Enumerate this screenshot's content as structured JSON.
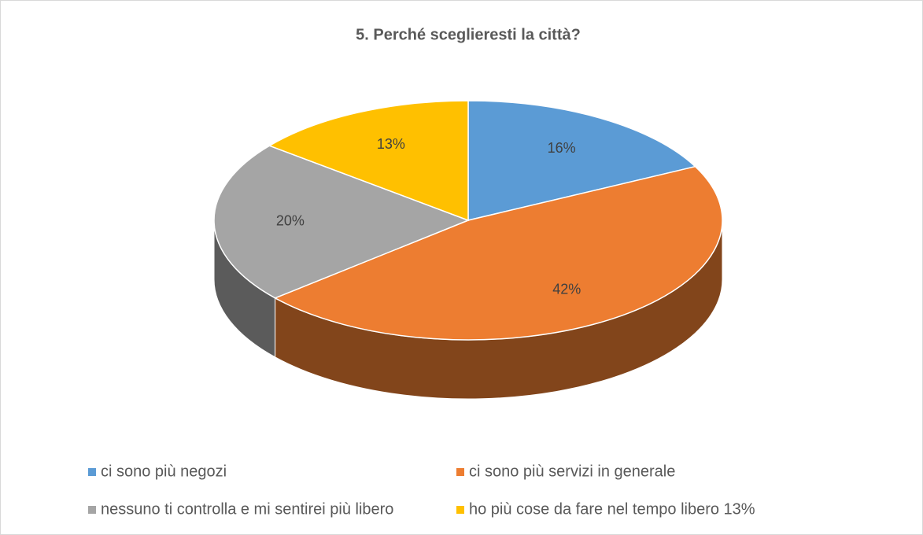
{
  "chart_data": {
    "type": "pie3d",
    "title": "5. Perché sceglieresti la città?",
    "categories": [
      "ci sono più negozi",
      "ci sono più servizi in generale",
      "nessuno ti controlla e mi sentirei più libero",
      "ho più cose da fare nel tempo libero 13%"
    ],
    "values": [
      16,
      42,
      20,
      13
    ],
    "value_labels": [
      "16%",
      "42%",
      "20%",
      "13%"
    ],
    "colors": [
      "#5b9bd5",
      "#ed7d31",
      "#a5a5a5",
      "#ffc000"
    ],
    "legend": "bottom"
  }
}
